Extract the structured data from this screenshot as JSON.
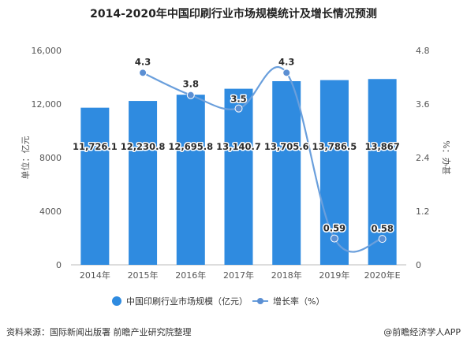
{
  "title": "2014-2020年中国印刷行业市场规模统计及增长情况预测",
  "footer": {
    "source": "资料来源：国际新闻出版署 前瞻产业研究院整理",
    "brand": "@前瞻经济学人APP"
  },
  "colors": {
    "bar": "#2f8be0",
    "line": "#6a9fdc",
    "marker": "#5b8fd3"
  },
  "chart_data": {
    "type": "bar",
    "title": "2014-2020年中国印刷行业市场规模统计及增长情况预测",
    "categories": [
      "2014年",
      "2015年",
      "2016年",
      "2017年",
      "2018年",
      "2019年",
      "2020年E"
    ],
    "series": [
      {
        "name": "中国印刷行业市场规模（亿元）",
        "type": "bar",
        "axis": "left",
        "values": [
          11726.1,
          12230.8,
          12695.8,
          13140.7,
          13705.6,
          13786.5,
          13867
        ],
        "labels": [
          "11,726.1",
          "12,230.8",
          "12,695.8",
          "13,140.7",
          "13,705.6",
          "13,786.5",
          "13,867"
        ]
      },
      {
        "name": "增长率（%）",
        "type": "line",
        "axis": "right",
        "values": [
          null,
          4.3,
          3.8,
          3.5,
          4.3,
          0.59,
          0.58
        ],
        "labels": [
          "",
          "4.3",
          "3.8",
          "3.5",
          "4.3",
          "0.59",
          "0.58"
        ]
      }
    ],
    "ylabel": "单位：亿元",
    "y2label": "%：办甚",
    "ylim": [
      0,
      16000
    ],
    "yticks": [
      0,
      4000,
      8000,
      12000,
      16000
    ],
    "ytick_labels": [
      "0",
      "4000",
      "8000",
      "12,000",
      "16,000"
    ],
    "y2lim": [
      0,
      4.8
    ],
    "y2ticks": [
      0,
      1.2,
      2.4,
      3.6,
      4.8
    ],
    "y2tick_labels": [
      "0",
      "1.2",
      "2.4",
      "3.6",
      "4.8"
    ],
    "grid": false,
    "legend_position": "bottom"
  }
}
